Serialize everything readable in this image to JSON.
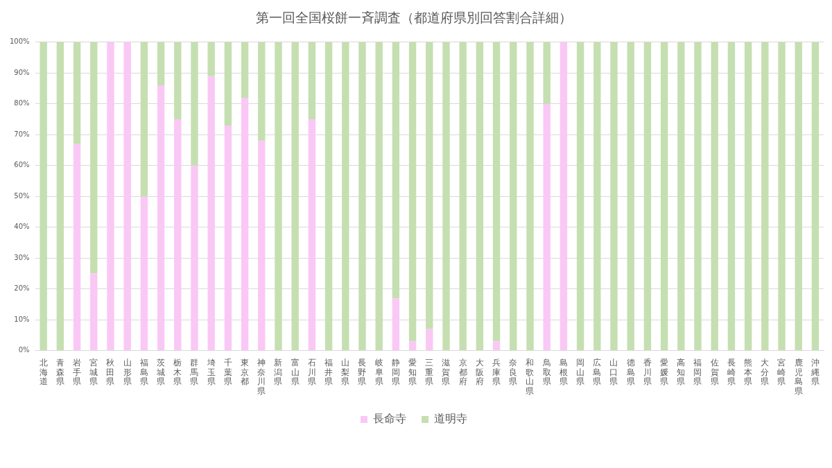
{
  "chart_data": {
    "type": "bar",
    "title": "第一回全国桜餅一斉調査（都道府県別回答割合詳細）",
    "categories": [
      "北海道",
      "青森県",
      "岩手県",
      "宮城県",
      "秋田県",
      "山形県",
      "福島県",
      "茨城県",
      "栃木県",
      "群馬県",
      "埼玉県",
      "千葉県",
      "東京都",
      "神奈川県",
      "新潟県",
      "富山県",
      "石川県",
      "福井県",
      "山梨県",
      "長野県",
      "岐阜県",
      "静岡県",
      "愛知県",
      "三重県",
      "滋賀県",
      "京都府",
      "大阪府",
      "兵庫県",
      "奈良県",
      "和歌山県",
      "鳥取県",
      "島根県",
      "岡山県",
      "広島県",
      "山口県",
      "徳島県",
      "香川県",
      "愛媛県",
      "高知県",
      "福岡県",
      "佐賀県",
      "長崎県",
      "熊本県",
      "大分県",
      "宮崎県",
      "鹿児島県",
      "沖縄県"
    ],
    "series": [
      {
        "name": "長命寺",
        "color": "#fac8f5",
        "values": [
          0,
          0,
          67,
          25,
          100,
          100,
          50,
          86,
          75,
          60,
          89,
          73,
          82,
          68,
          0,
          0,
          75,
          0,
          0,
          0,
          0,
          17,
          3,
          7,
          0,
          0,
          0,
          3,
          0,
          0,
          80,
          100,
          0,
          0,
          0,
          0,
          0,
          0,
          0,
          0,
          0,
          0,
          0,
          0,
          0,
          0,
          0
        ]
      },
      {
        "name": "道明寺",
        "color": "#c5dfb1",
        "values": [
          100,
          100,
          33,
          75,
          0,
          0,
          50,
          14,
          25,
          40,
          11,
          27,
          18,
          32,
          100,
          100,
          25,
          100,
          100,
          100,
          100,
          83,
          97,
          93,
          100,
          100,
          100,
          97,
          100,
          100,
          20,
          0,
          100,
          100,
          100,
          100,
          100,
          100,
          100,
          100,
          100,
          100,
          100,
          100,
          100,
          100,
          100
        ]
      }
    ],
    "stacked": true,
    "ylim": [
      0,
      100
    ],
    "yticks": [
      {
        "value": 0,
        "label": "0%"
      },
      {
        "value": 10,
        "label": "10%"
      },
      {
        "value": 20,
        "label": "20%"
      },
      {
        "value": 30,
        "label": "30%"
      },
      {
        "value": 40,
        "label": "40%"
      },
      {
        "value": 50,
        "label": "50%"
      },
      {
        "value": 60,
        "label": "60%"
      },
      {
        "value": 70,
        "label": "70%"
      },
      {
        "value": 80,
        "label": "80%"
      },
      {
        "value": 90,
        "label": "90%"
      },
      {
        "value": 100,
        "label": "100%"
      }
    ],
    "grid": "y",
    "legend": "bottom"
  }
}
